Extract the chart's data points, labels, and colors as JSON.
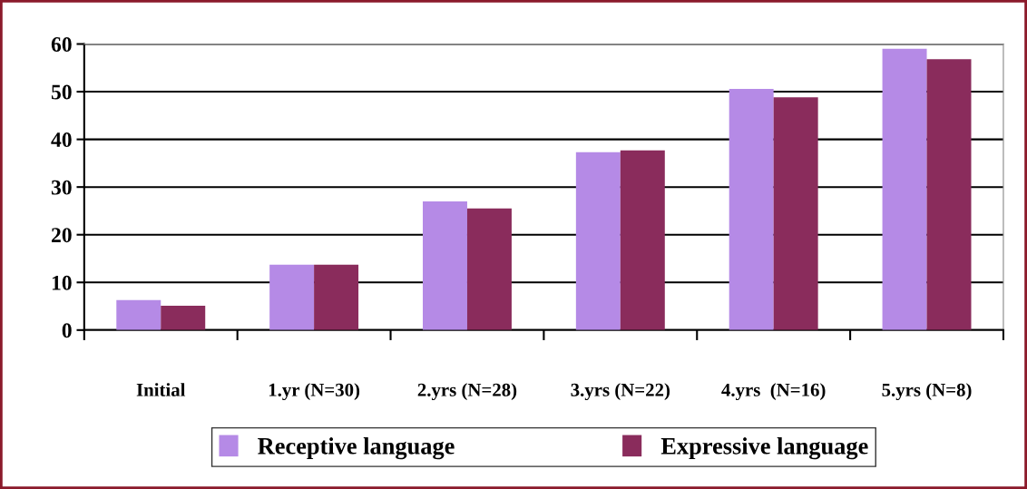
{
  "chart_data": {
    "type": "bar",
    "categories": [
      "Initial",
      "1.yr (N=30)",
      "2.yrs (N=28)",
      "3.yrs (N=22)",
      "4.yrs  (N=16)",
      "5.yrs (N=8)"
    ],
    "series": [
      {
        "name": "Receptive language",
        "color": "#b58ae6",
        "values": [
          6.3,
          13.7,
          27.0,
          37.3,
          50.6,
          59.0
        ]
      },
      {
        "name": "Expressive language",
        "color": "#8a2c5c",
        "values": [
          5.1,
          13.7,
          25.5,
          37.7,
          48.8,
          56.8
        ]
      }
    ],
    "ylim": [
      0,
      60
    ],
    "yticks": [
      0,
      10,
      20,
      30,
      40,
      50,
      60
    ],
    "grid": "y",
    "legend": "bottom"
  }
}
